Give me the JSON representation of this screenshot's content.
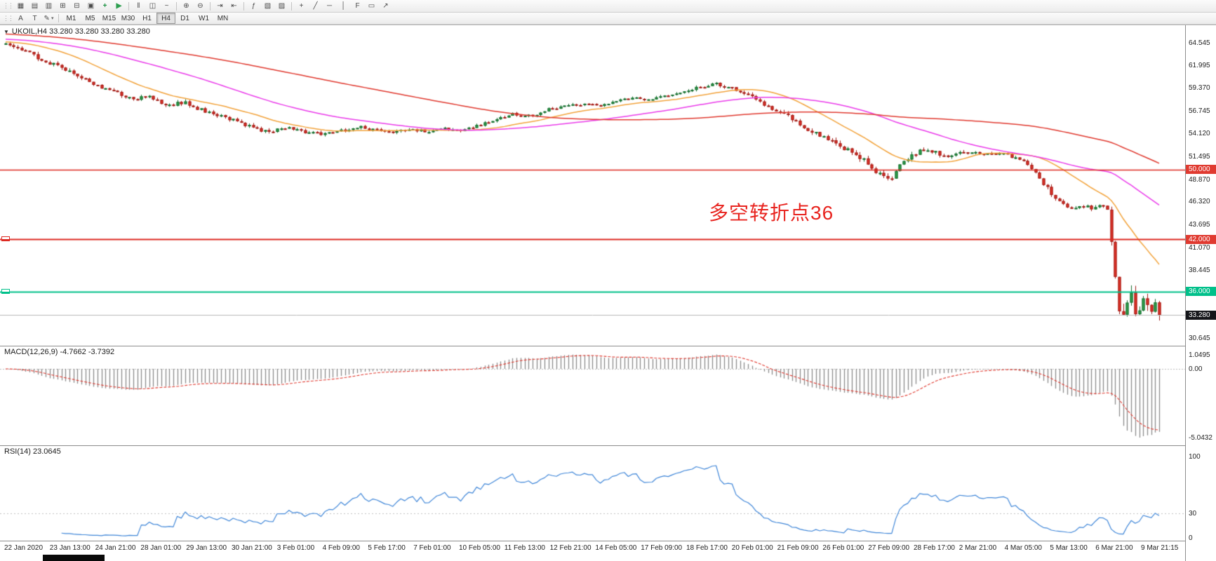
{
  "toolbar": {
    "row1": [
      {
        "name": "toolbar-grip",
        "glyph": "⋮⋮",
        "grip": true
      },
      {
        "name": "new-chart-button",
        "glyph": "▦"
      },
      {
        "name": "profiles-button",
        "glyph": "▤"
      },
      {
        "name": "market-watch-button",
        "glyph": "▥"
      },
      {
        "name": "data-window-button",
        "glyph": "⊞"
      },
      {
        "name": "navigator-button",
        "glyph": "⊟"
      },
      {
        "name": "terminal-button",
        "glyph": "▣"
      },
      {
        "name": "new-order-button",
        "glyph": "+",
        "color": "#168f3e"
      },
      {
        "name": "autotrading-button",
        "glyph": "▶",
        "color": "#2c9e4e"
      },
      {
        "sep": true
      },
      {
        "name": "bar-chart-button",
        "glyph": "‖"
      },
      {
        "name": "candlestick-chart-button",
        "glyph": "◫"
      },
      {
        "name": "line-chart-button",
        "glyph": "~"
      },
      {
        "sep": true
      },
      {
        "name": "zoom-in-button",
        "glyph": "⊕"
      },
      {
        "name": "zoom-out-button",
        "glyph": "⊖"
      },
      {
        "sep": true
      },
      {
        "name": "auto-scroll-button",
        "glyph": "⇥"
      },
      {
        "name": "chart-shift-button",
        "glyph": "⇤"
      },
      {
        "sep": true
      },
      {
        "name": "indicators-button",
        "glyph": "ƒ"
      },
      {
        "name": "periods-button",
        "glyph": "▧"
      },
      {
        "name": "templates-button",
        "glyph": "▨"
      },
      {
        "sep": true
      },
      {
        "name": "crosshair-button",
        "glyph": "+"
      },
      {
        "name": "trendline-button",
        "glyph": "╱"
      },
      {
        "name": "horizontal-line-button",
        "glyph": "─"
      },
      {
        "name": "vertical-line-button",
        "glyph": "│"
      },
      {
        "name": "fibonacci-button",
        "glyph": "F"
      },
      {
        "name": "shapes-button",
        "glyph": "▭"
      },
      {
        "name": "arrow-object-button",
        "glyph": "↗"
      }
    ],
    "row2": {
      "tools": [
        {
          "name": "cursor-tool-button",
          "label": "A"
        },
        {
          "name": "text-tool-button",
          "label": "T"
        },
        {
          "name": "drawing-tool-button",
          "label": "✎",
          "dropdown": "▾"
        }
      ],
      "timeframes": [
        {
          "label": "M1"
        },
        {
          "label": "M5"
        },
        {
          "label": "M15"
        },
        {
          "label": "M30"
        },
        {
          "label": "H1"
        },
        {
          "label": "H4",
          "active": true
        },
        {
          "label": "D1"
        },
        {
          "label": "W1"
        },
        {
          "label": "MN"
        }
      ]
    }
  },
  "chart": {
    "symbol_line": "UKOIL,H4  33.280 33.280 33.280 33.280",
    "dropdown_glyph": "▼",
    "annotation": {
      "text": "多空转折点36",
      "color": "#e8241f"
    },
    "price_axis": {
      "labels": [
        {
          "text": "64.545",
          "price": 64.545
        },
        {
          "text": "61.995",
          "price": 61.995
        },
        {
          "text": "59.370",
          "price": 59.37
        },
        {
          "text": "56.745",
          "price": 56.745
        },
        {
          "text": "54.120",
          "price": 54.12
        },
        {
          "text": "51.495",
          "price": 51.495
        },
        {
          "text": "48.870",
          "price": 48.87
        },
        {
          "text": "46.320",
          "price": 46.32
        },
        {
          "text": "43.695",
          "price": 43.695
        },
        {
          "text": "41.070",
          "price": 41.07
        },
        {
          "text": "38.445",
          "price": 38.445
        },
        {
          "text": "30.645",
          "price": 30.645
        }
      ],
      "badges": [
        {
          "text": "50.000",
          "price": 50.0,
          "bg": "#e03a30",
          "fg": "#ffffff"
        },
        {
          "text": "42.000",
          "price": 42.0,
          "bg": "#e03a30",
          "fg": "#ffffff"
        },
        {
          "text": "36.000",
          "price": 36.0,
          "bg": "#00c08a",
          "fg": "#ffffff"
        },
        {
          "text": "33.280",
          "price": 33.28,
          "bg": "#15161a",
          "fg": "#ffffff"
        }
      ]
    },
    "h_lines": [
      {
        "price": 50.0,
        "color": "#dd2a22",
        "width": 1.4,
        "handle": false
      },
      {
        "price": 42.0,
        "color": "#dd2a22",
        "width": 2.0,
        "handle": true
      },
      {
        "price": 36.0,
        "color": "#00c08a",
        "width": 2.0,
        "handle": true
      },
      {
        "price": 33.28,
        "color": "#b9b9b9",
        "width": 1.0,
        "handle": false
      }
    ],
    "time_axis": [
      "22 Jan 2020",
      "23 Jan 13:00",
      "24 Jan 21:00",
      "28 Jan 01:00",
      "29 Jan 13:00",
      "30 Jan 21:00",
      "3 Feb 01:00",
      "4 Feb 09:00",
      "5 Feb 17:00",
      "7 Feb 01:00",
      "10 Feb 05:00",
      "11 Feb 13:00",
      "12 Feb 21:00",
      "14 Feb 05:00",
      "17 Feb 09:00",
      "18 Feb 17:00",
      "20 Feb 01:00",
      "21 Feb 09:00",
      "26 Feb 01:00",
      "27 Feb 09:00",
      "28 Feb 17:00",
      "2 Mar 21:00",
      "4 Mar 05:00",
      "5 Mar 13:00",
      "6 Mar 21:00",
      "9 Mar 21:15"
    ]
  },
  "indicators": {
    "macd": {
      "label": "MACD(12,26,9) -4.7662 -3.7392",
      "fast": 12,
      "slow": 26,
      "signal": 9,
      "histogram_color": "#8a8a8a",
      "signal_color": "#e03a30",
      "scale": [
        {
          "text": "1.0495",
          "value": 1.0495
        },
        {
          "text": "0.00",
          "value": 0
        },
        {
          "text": "-5.0432",
          "value": -5.0432
        }
      ]
    },
    "rsi": {
      "label": "RSI(14) 23.0645",
      "period": 14,
      "color": "#3f86d8",
      "level": 30,
      "scale": [
        {
          "text": "100",
          "value": 100
        },
        {
          "text": "30",
          "value": 30
        },
        {
          "text": "0",
          "value": 0
        }
      ]
    }
  },
  "chart_data": {
    "type": "candlestick",
    "symbol": "UKOIL",
    "timeframe": "H4",
    "last_price": 33.28,
    "up_color": "#2fa24c",
    "up_border": "#176b2e",
    "down_color": "#e23128",
    "down_border": "#9e1d17",
    "price_range_top_label": 64.545,
    "candles": {
      "count": 290,
      "seed": 20200309,
      "price_anchors": [
        [
          0,
          64.3
        ],
        [
          0.01,
          64.05
        ],
        [
          0.02,
          63.3
        ],
        [
          0.035,
          62.4
        ],
        [
          0.05,
          61.6
        ],
        [
          0.065,
          60.5
        ],
        [
          0.08,
          59.6
        ],
        [
          0.095,
          58.9
        ],
        [
          0.11,
          58.1
        ],
        [
          0.125,
          58.4
        ],
        [
          0.14,
          57.4
        ],
        [
          0.155,
          57.7
        ],
        [
          0.17,
          56.8
        ],
        [
          0.185,
          56.2
        ],
        [
          0.2,
          55.5
        ],
        [
          0.215,
          54.7
        ],
        [
          0.23,
          54.3
        ],
        [
          0.245,
          54.9
        ],
        [
          0.26,
          54.3
        ],
        [
          0.275,
          54.0
        ],
        [
          0.29,
          54.4
        ],
        [
          0.305,
          54.9
        ],
        [
          0.32,
          54.5
        ],
        [
          0.335,
          54.3
        ],
        [
          0.35,
          54.6
        ],
        [
          0.365,
          54.4
        ],
        [
          0.38,
          54.7
        ],
        [
          0.395,
          54.5
        ],
        [
          0.41,
          55.1
        ],
        [
          0.425,
          55.7
        ],
        [
          0.44,
          56.4
        ],
        [
          0.455,
          56.1
        ],
        [
          0.47,
          56.9
        ],
        [
          0.485,
          57.2
        ],
        [
          0.5,
          57.5
        ],
        [
          0.515,
          57.3
        ],
        [
          0.53,
          57.9
        ],
        [
          0.545,
          58.2
        ],
        [
          0.56,
          58.0
        ],
        [
          0.575,
          58.6
        ],
        [
          0.59,
          59.1
        ],
        [
          0.605,
          59.5
        ],
        [
          0.615,
          59.9
        ],
        [
          0.63,
          59.3
        ],
        [
          0.645,
          58.4
        ],
        [
          0.66,
          57.2
        ],
        [
          0.675,
          56.3
        ],
        [
          0.69,
          55.0
        ],
        [
          0.705,
          54.0
        ],
        [
          0.72,
          52.8
        ],
        [
          0.735,
          51.9
        ],
        [
          0.748,
          50.6
        ],
        [
          0.758,
          49.4
        ],
        [
          0.766,
          48.8
        ],
        [
          0.774,
          50.2
        ],
        [
          0.785,
          51.5
        ],
        [
          0.795,
          52.2
        ],
        [
          0.805,
          52.0
        ],
        [
          0.815,
          51.4
        ],
        [
          0.825,
          51.9
        ],
        [
          0.835,
          52.1
        ],
        [
          0.845,
          51.7
        ],
        [
          0.855,
          51.9
        ],
        [
          0.865,
          51.8
        ],
        [
          0.875,
          51.4
        ],
        [
          0.885,
          50.6
        ],
        [
          0.893,
          49.5
        ],
        [
          0.901,
          48.2
        ],
        [
          0.909,
          46.8
        ],
        [
          0.917,
          45.9
        ],
        [
          0.925,
          45.4
        ],
        [
          0.933,
          45.9
        ],
        [
          0.941,
          45.5
        ],
        [
          0.949,
          45.8
        ],
        [
          0.955,
          45.4
        ],
        [
          0.96,
          40.5
        ],
        [
          0.964,
          35.5
        ],
        [
          0.968,
          32.2
        ],
        [
          0.972,
          34.6
        ],
        [
          0.976,
          36.2
        ],
        [
          0.98,
          32.8
        ],
        [
          0.984,
          34.8
        ],
        [
          0.988,
          36.3
        ],
        [
          0.992,
          33.2
        ],
        [
          0.996,
          35.6
        ],
        [
          1,
          33.28
        ]
      ],
      "vol_anchors": [
        [
          0,
          0.5
        ],
        [
          0.05,
          0.55
        ],
        [
          0.1,
          0.5
        ],
        [
          0.18,
          0.45
        ],
        [
          0.26,
          0.4
        ],
        [
          0.34,
          0.35
        ],
        [
          0.42,
          0.32
        ],
        [
          0.5,
          0.32
        ],
        [
          0.58,
          0.35
        ],
        [
          0.64,
          0.45
        ],
        [
          0.7,
          0.55
        ],
        [
          0.74,
          0.65
        ],
        [
          0.78,
          0.6
        ],
        [
          0.82,
          0.45
        ],
        [
          0.86,
          0.38
        ],
        [
          0.9,
          0.55
        ],
        [
          0.94,
          0.45
        ],
        [
          0.955,
          0.5
        ],
        [
          0.962,
          1.2
        ],
        [
          0.968,
          1.8
        ],
        [
          0.975,
          1.7
        ],
        [
          1,
          1.6
        ]
      ]
    },
    "moving_averages": [
      {
        "name": "ma-fast",
        "period": 21,
        "color": "#f2a33c"
      },
      {
        "name": "ma-mid",
        "period": 55,
        "color": "#ea3cea"
      },
      {
        "name": "ma-slow",
        "period": 120,
        "color": "#e03a30"
      }
    ]
  }
}
